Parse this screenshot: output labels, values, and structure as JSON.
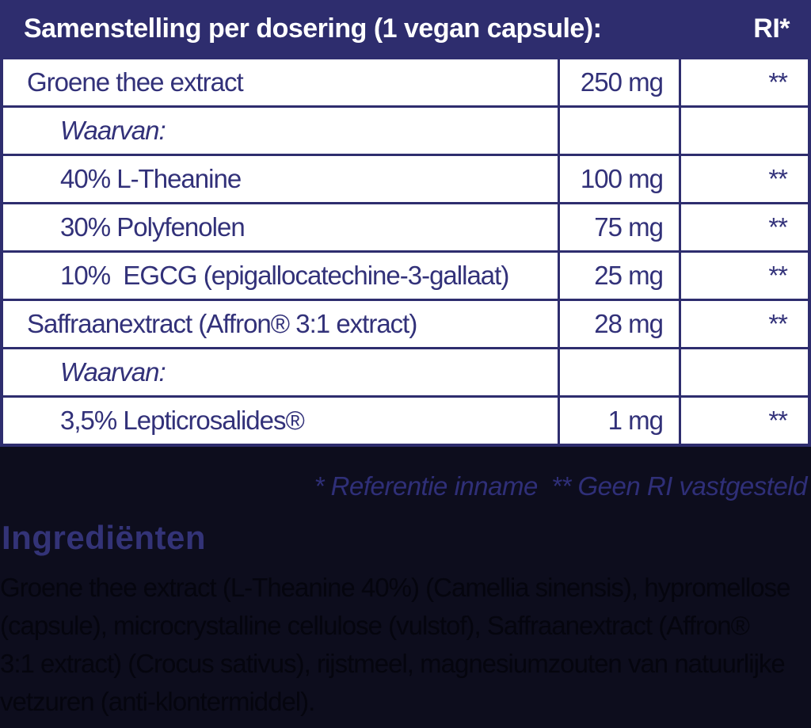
{
  "colors": {
    "navy": "#2e2d6e",
    "table_text": "#323179",
    "dark_background": "#0d0d1d",
    "footnote_text": "#2f2f78",
    "heading_text": "#333377",
    "paragraph_text": "#05050e",
    "header_text": "#ffffff"
  },
  "table": {
    "header": {
      "title": "Samenstelling per dosering (1 vegan capsule):",
      "ri_label": "RI*"
    },
    "rows": [
      {
        "name": "Groene thee extract",
        "amount": "250 mg",
        "ri": "**"
      },
      {
        "name": "Waarvan:",
        "amount": "",
        "ri": ""
      },
      {
        "name": "40% L-Theanine",
        "amount": "100 mg",
        "ri": "**"
      },
      {
        "name": "30% Polyfenolen",
        "amount": "75 mg",
        "ri": "**"
      },
      {
        "name": "10%  EGCG (epigallocatechine-3-gallaat)",
        "amount": "25 mg",
        "ri": "**"
      },
      {
        "name": "Saffraanextract (Affron® 3:1 extract)",
        "amount": "28 mg",
        "ri": "**"
      },
      {
        "name": "Waarvan:",
        "amount": "",
        "ri": ""
      },
      {
        "name": "3,5% Lepticrosalides®",
        "amount": "1 mg",
        "ri": "**"
      }
    ]
  },
  "footnote": "* Referentie inname  ** Geen RI vastgesteld",
  "ingredients": {
    "heading": "Ingrediënten",
    "lines": [
      "Groene thee extract (L-Theanine 40%) (Camellia sinensis), hypromellose",
      "(capsule), microcrystalline cellulose (vulstof), Saffraanextract (Affron®",
      "3:1 extract) (Crocus sativus), rijstmeel, magnesiumzouten van natuurlijke",
      "vetzuren (anti-klontermiddel)."
    ]
  }
}
